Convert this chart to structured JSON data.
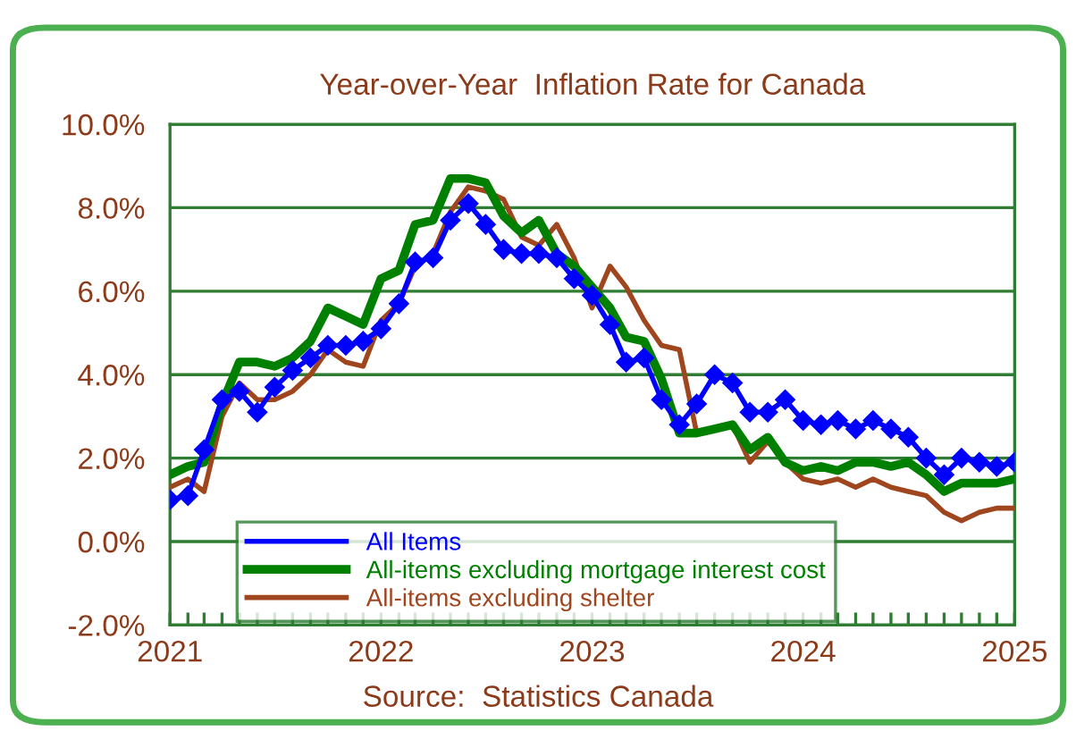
{
  "chart_data": {
    "type": "line",
    "title": "Year-over-Year  Inflation Rate for Canada",
    "x": [
      "2021-01",
      "2021-02",
      "2021-03",
      "2021-04",
      "2021-05",
      "2021-06",
      "2021-07",
      "2021-08",
      "2021-09",
      "2021-10",
      "2021-11",
      "2021-12",
      "2022-01",
      "2022-02",
      "2022-03",
      "2022-04",
      "2022-05",
      "2022-06",
      "2022-07",
      "2022-08",
      "2022-09",
      "2022-10",
      "2022-11",
      "2022-12",
      "2023-01",
      "2023-02",
      "2023-03",
      "2023-04",
      "2023-05",
      "2023-06",
      "2023-07",
      "2023-08",
      "2023-09",
      "2023-10",
      "2023-11",
      "2023-12",
      "2024-01",
      "2024-02",
      "2024-03",
      "2024-04",
      "2024-05",
      "2024-06",
      "2024-07",
      "2024-08",
      "2024-09",
      "2024-10",
      "2024-11",
      "2024-12",
      "2025-01"
    ],
    "series": [
      {
        "name": "All Items",
        "color": "#0000ff",
        "marker": "diamond",
        "values": [
          1.0,
          1.1,
          2.2,
          3.4,
          3.6,
          3.1,
          3.7,
          4.1,
          4.4,
          4.7,
          4.7,
          4.8,
          5.1,
          5.7,
          6.7,
          6.8,
          7.7,
          8.1,
          7.6,
          7.0,
          6.9,
          6.9,
          6.8,
          6.3,
          5.9,
          5.2,
          4.3,
          4.4,
          3.4,
          2.8,
          3.3,
          4.0,
          3.8,
          3.1,
          3.1,
          3.4,
          2.9,
          2.8,
          2.9,
          2.7,
          2.9,
          2.7,
          2.5,
          2.0,
          1.6,
          2.0,
          1.9,
          1.8,
          1.9
        ]
      },
      {
        "name": "All-items excluding mortgage interest cost",
        "color": "#008000",
        "marker": "none",
        "values": [
          1.6,
          1.8,
          1.9,
          3.3,
          4.3,
          4.3,
          4.2,
          4.4,
          4.8,
          5.6,
          5.4,
          5.2,
          6.3,
          6.5,
          7.6,
          7.7,
          8.7,
          8.7,
          8.6,
          7.8,
          7.4,
          7.7,
          6.9,
          6.6,
          6.1,
          5.6,
          4.9,
          4.8,
          3.9,
          2.6,
          2.6,
          2.7,
          2.8,
          2.2,
          2.5,
          1.9,
          1.7,
          1.8,
          1.7,
          1.9,
          1.9,
          1.8,
          1.9,
          1.6,
          1.2,
          1.4,
          1.4,
          1.4,
          1.5
        ]
      },
      {
        "name": "All-items excluding shelter",
        "color": "#a0461e",
        "marker": "none",
        "values": [
          1.3,
          1.5,
          1.2,
          3.0,
          3.8,
          3.4,
          3.4,
          3.6,
          4.0,
          4.6,
          4.3,
          4.2,
          5.3,
          5.7,
          6.6,
          6.9,
          7.9,
          8.5,
          8.4,
          8.2,
          7.3,
          7.1,
          7.6,
          6.8,
          5.6,
          6.6,
          6.1,
          5.3,
          4.7,
          4.6,
          2.6,
          2.7,
          2.8,
          1.9,
          2.4,
          1.9,
          1.5,
          1.4,
          1.5,
          1.3,
          1.5,
          1.3,
          1.2,
          1.1,
          0.7,
          0.5,
          0.7,
          0.8,
          0.8
        ]
      }
    ],
    "xlim": [
      "2021-01",
      "2025-01"
    ],
    "xticks": [
      {
        "value": "2021-01",
        "label": "2021"
      },
      {
        "value": "2022-01",
        "label": "2022"
      },
      {
        "value": "2023-01",
        "label": "2023"
      },
      {
        "value": "2024-01",
        "label": "2024"
      },
      {
        "value": "2025-01",
        "label": "2025"
      }
    ],
    "ylim": [
      -2,
      10
    ],
    "yticks": [
      {
        "value": -2,
        "label": "-2.0%"
      },
      {
        "value": 0,
        "label": "0.0%"
      },
      {
        "value": 2,
        "label": "2.0%"
      },
      {
        "value": 4,
        "label": "4.0%"
      },
      {
        "value": 6,
        "label": "6.0%"
      },
      {
        "value": 8,
        "label": "8.0%"
      },
      {
        "value": 10,
        "label": "10.0%"
      }
    ],
    "grid": "y",
    "legend": "bottom left",
    "line_style": "solid",
    "annotations": [
      "Source:  Statistics Canada"
    ]
  }
}
